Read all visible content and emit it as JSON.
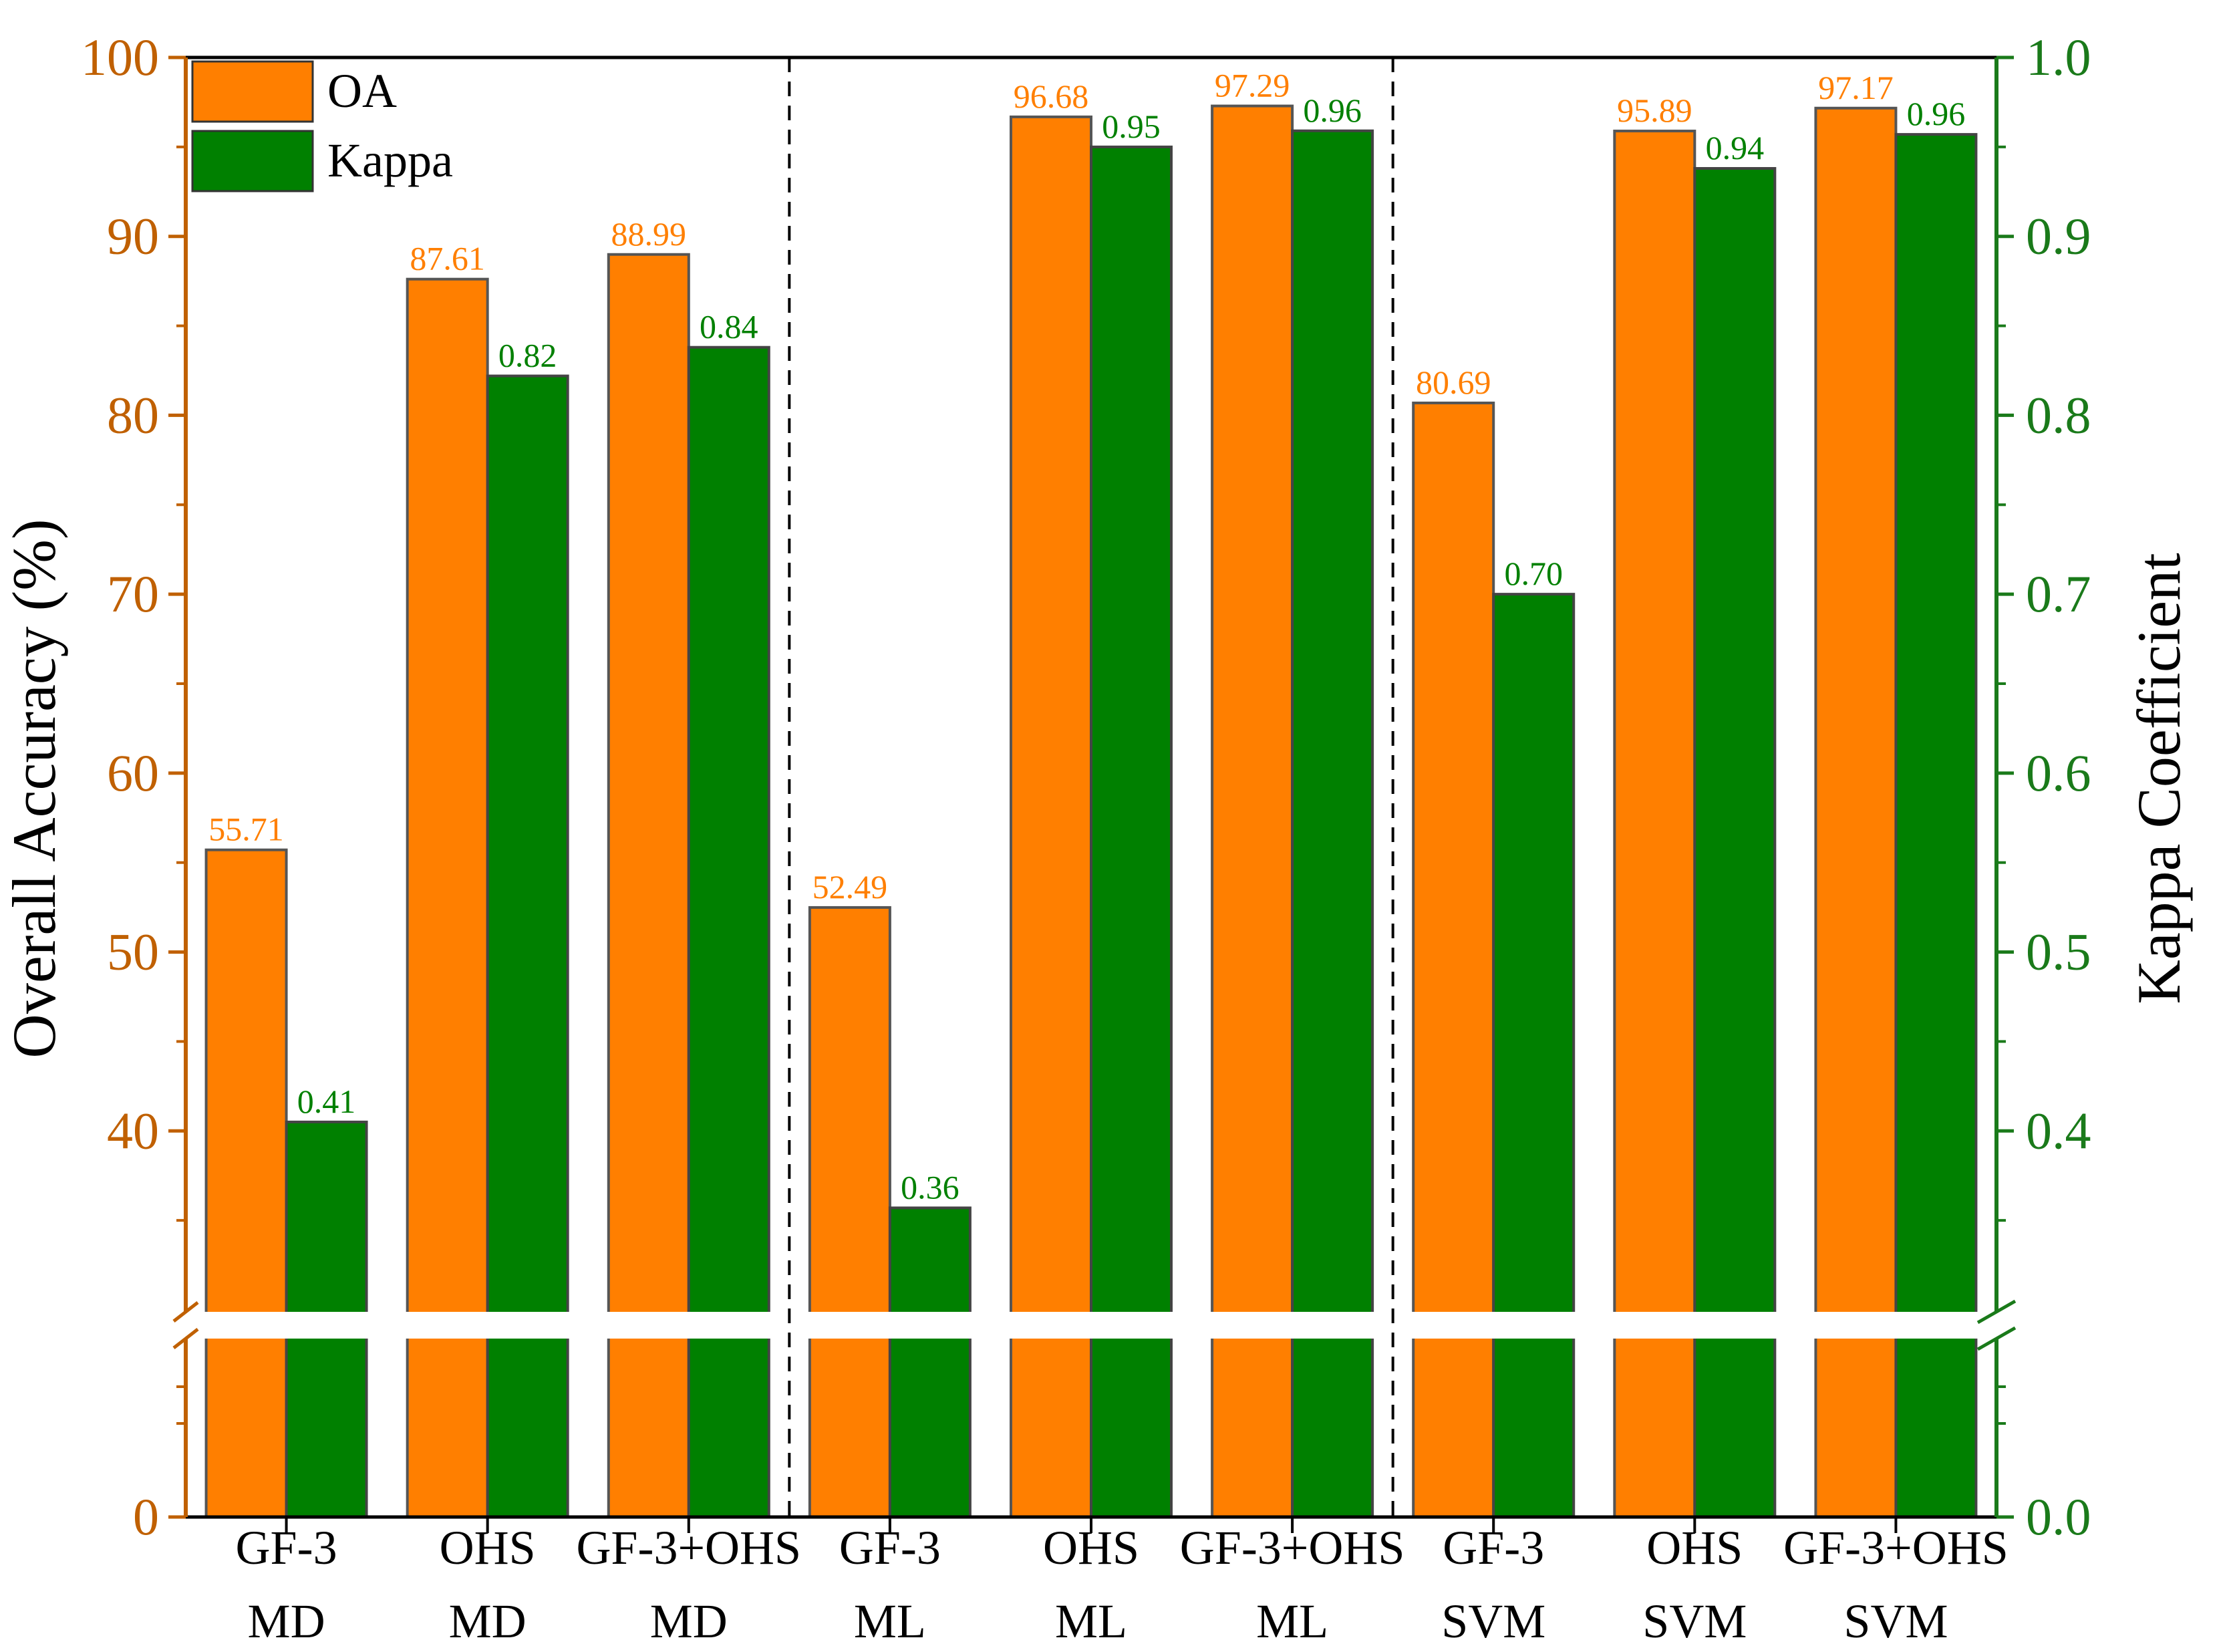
{
  "colors": {
    "oa": "#ff7f00",
    "kappa": "#008000",
    "left_axis": "#c06000",
    "right_axis": "#1a7a1a",
    "oa_label": "#ff7f00",
    "kappa_label": "#008000"
  },
  "chart_data": {
    "type": "bar",
    "title": "",
    "xlabel": "",
    "ylabel": "Overall Accuracy (%)",
    "y2label": "Kappa Coefficient",
    "ylim": [
      0,
      100
    ],
    "y2lim": [
      0.0,
      1.0
    ],
    "axis_break": {
      "left_between": [
        0,
        30
      ],
      "right_between": [
        0.0,
        0.3
      ]
    },
    "legend": {
      "position": "top-left",
      "entries": [
        "OA",
        "Kappa"
      ]
    },
    "left_ticks": [
      "0",
      "40",
      "50",
      "60",
      "70",
      "80",
      "90",
      "100"
    ],
    "right_ticks": [
      "0.0",
      "0.4",
      "0.5",
      "0.6",
      "0.7",
      "0.8",
      "0.9",
      "1.0"
    ],
    "categories": [
      {
        "line1": "GF-3",
        "line2": "MD"
      },
      {
        "line1": "OHS",
        "line2": "MD"
      },
      {
        "line1": "GF-3+OHS",
        "line2": "MD"
      },
      {
        "line1": "GF-3",
        "line2": "ML"
      },
      {
        "line1": "OHS",
        "line2": "ML"
      },
      {
        "line1": "GF-3+OHS",
        "line2": "ML"
      },
      {
        "line1": "GF-3",
        "line2": "SVM"
      },
      {
        "line1": "OHS",
        "line2": "SVM"
      },
      {
        "line1": "GF-3+OHS",
        "line2": "SVM"
      }
    ],
    "series": [
      {
        "name": "OA",
        "axis": "left",
        "values": [
          55.71,
          87.61,
          88.99,
          52.49,
          96.68,
          97.29,
          80.69,
          95.89,
          97.17
        ],
        "labels": [
          "55.71",
          "87.61",
          "88.99",
          "52.49",
          "96.68",
          "97.29",
          "80.69",
          "95.89",
          "97.17"
        ]
      },
      {
        "name": "Kappa",
        "axis": "right",
        "values": [
          0.405,
          0.822,
          0.838,
          0.357,
          0.95,
          0.959,
          0.7,
          0.938,
          0.957
        ],
        "labels": [
          "0.41",
          "0.82",
          "0.84",
          "0.36",
          "0.95",
          "0.96",
          "0.70",
          "0.94",
          "0.96"
        ]
      }
    ],
    "group_separators": "dashed lines between MD | ML | SVM groups"
  }
}
